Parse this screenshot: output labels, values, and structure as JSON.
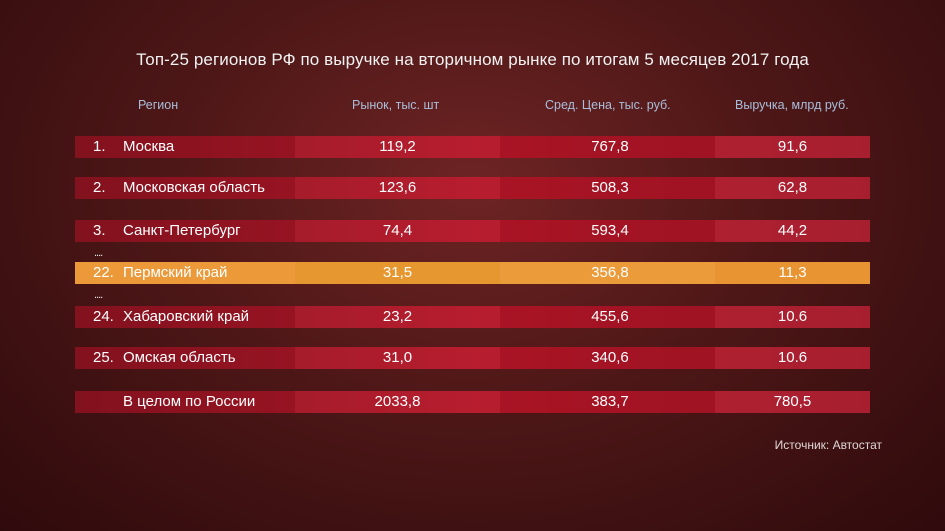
{
  "title": "Топ-25 регионов РФ по выручке на вторичном рынке по итогам 5 месяцев 2017 года",
  "headers": {
    "region": "Регион",
    "market": "Рынок, тыс. шт",
    "price": "Сред. Цена, тыс. руб.",
    "revenue": "Выручка, млрд руб."
  },
  "rows": [
    {
      "num": "1.",
      "region": "Москва",
      "market": "119,2",
      "price": "767,8",
      "revenue": "91,6"
    },
    {
      "num": "2.",
      "region": "Московская область",
      "market": "123,6",
      "price": "508,3",
      "revenue": "62,8"
    },
    {
      "num": "3.",
      "region": "Санкт-Петербург",
      "market": "74,4",
      "price": "593,4",
      "revenue": "44,2"
    },
    {
      "num": "22.",
      "region": "Пермский край",
      "market": "31,5",
      "price": "356,8",
      "revenue": "11,3"
    },
    {
      "num": "24.",
      "region": "Хабаровский край",
      "market": "23,2",
      "price": "455,6",
      "revenue": "10.6"
    },
    {
      "num": "25.",
      "region": "Омская область",
      "market": "31,0",
      "price": "340,6",
      "revenue": "10.6"
    },
    {
      "num": "",
      "region": "В целом по России",
      "market": "2033,8",
      "price": "383,7",
      "revenue": "780,5"
    }
  ],
  "ellipsis": "....",
  "source": "Источник: Автостат",
  "colors": {
    "row": "#b51628",
    "highlight": "#e8912f",
    "header_text": "#a9bedb"
  }
}
